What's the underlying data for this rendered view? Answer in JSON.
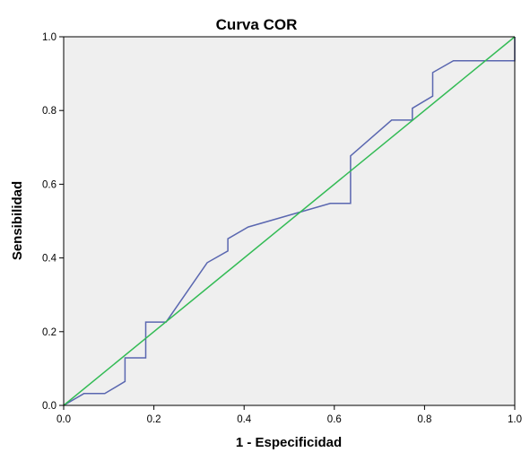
{
  "chart_data": {
    "type": "line",
    "title": "Curva COR",
    "xlabel": "1 - Especificidad",
    "ylabel": "Sensibilidad",
    "xlim": [
      0,
      1
    ],
    "ylim": [
      0,
      1
    ],
    "x_ticks": [
      "0.0",
      "0.2",
      "0.4",
      "0.6",
      "0.8",
      "1.0"
    ],
    "y_ticks": [
      "0.0",
      "0.2",
      "0.4",
      "0.6",
      "0.8",
      "1.0"
    ],
    "grid": false,
    "legend": "none",
    "plot_background": "#efefef",
    "series": [
      {
        "color": "#5a67b0",
        "x": [
          0.0,
          0.045,
          0.091,
          0.136,
          0.136,
          0.182,
          0.182,
          0.227,
          0.318,
          0.364,
          0.364,
          0.409,
          0.591,
          0.636,
          0.636,
          0.727,
          0.773,
          0.773,
          0.818,
          0.818,
          0.864,
          1.0,
          1.0
        ],
        "y": [
          0.0,
          0.032,
          0.032,
          0.065,
          0.129,
          0.129,
          0.226,
          0.226,
          0.387,
          0.419,
          0.452,
          0.484,
          0.548,
          0.548,
          0.677,
          0.774,
          0.774,
          0.806,
          0.839,
          0.903,
          0.935,
          0.935,
          1.0
        ]
      },
      {
        "color": "#33bb55",
        "x": [
          0,
          1
        ],
        "y": [
          0,
          1
        ]
      }
    ]
  }
}
